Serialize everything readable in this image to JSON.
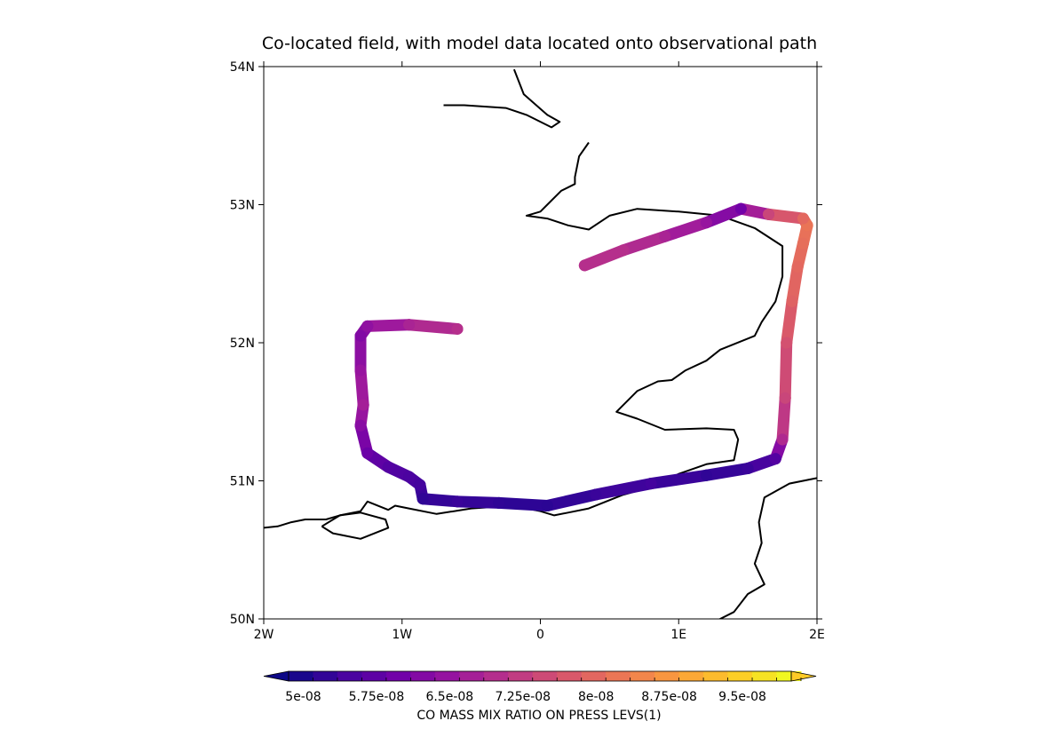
{
  "chart_data": {
    "type": "map-track",
    "title": "Co-located field, with model data located onto observational path",
    "xlim": [
      -2,
      2
    ],
    "ylim": [
      50,
      54
    ],
    "x_ticks": [
      {
        "value": -2,
        "label": "2W"
      },
      {
        "value": -1,
        "label": "1W"
      },
      {
        "value": 0,
        "label": "0"
      },
      {
        "value": 1,
        "label": "1E"
      },
      {
        "value": 2,
        "label": "2E"
      }
    ],
    "y_ticks": [
      {
        "value": 50,
        "label": "50N"
      },
      {
        "value": 51,
        "label": "51N"
      },
      {
        "value": 52,
        "label": "52N"
      },
      {
        "value": 53,
        "label": "53N"
      },
      {
        "value": 54,
        "label": "54N"
      }
    ],
    "colorbar": {
      "label": "CO MASS MIX RATIO ON PRESS LEVS(1)",
      "min": 4.85e-08,
      "max": 1e-07,
      "step": 2.5e-09,
      "extend": "both",
      "colormap": [
        "#0d0887",
        "#46039f",
        "#7201a8",
        "#9c179e",
        "#bd3786",
        "#d8576b",
        "#ed7953",
        "#fb9f3a",
        "#fdca26",
        "#f0f921"
      ],
      "tick_labels": [
        {
          "value": 5e-08,
          "label": "5e-08"
        },
        {
          "value": 5.75e-08,
          "label": "5.75e-08"
        },
        {
          "value": 6.5e-08,
          "label": "6.5e-08"
        },
        {
          "value": 7.25e-08,
          "label": "7.25e-08"
        },
        {
          "value": 8e-08,
          "label": "8e-08"
        },
        {
          "value": 8.75e-08,
          "label": "8.75e-08"
        },
        {
          "value": 9.5e-08,
          "label": "9.5e-08"
        }
      ]
    },
    "track": [
      {
        "lon": -0.6,
        "lat": 52.1,
        "co": 7e-08
      },
      {
        "lon": -0.95,
        "lat": 52.13,
        "co": 6.8e-08
      },
      {
        "lon": -1.25,
        "lat": 52.12,
        "co": 6.4e-08
      },
      {
        "lon": -1.3,
        "lat": 52.05,
        "co": 6.2e-08
      },
      {
        "lon": -1.3,
        "lat": 51.8,
        "co": 6.5e-08
      },
      {
        "lon": -1.28,
        "lat": 51.55,
        "co": 6.7e-08
      },
      {
        "lon": -1.3,
        "lat": 51.4,
        "co": 6.3e-08
      },
      {
        "lon": -1.25,
        "lat": 51.2,
        "co": 5.9e-08
      },
      {
        "lon": -1.1,
        "lat": 51.1,
        "co": 5.6e-08
      },
      {
        "lon": -0.95,
        "lat": 51.03,
        "co": 5.5e-08
      },
      {
        "lon": -0.87,
        "lat": 50.97,
        "co": 5.4e-08
      },
      {
        "lon": -0.85,
        "lat": 50.87,
        "co": 5.2e-08
      },
      {
        "lon": -0.6,
        "lat": 50.85,
        "co": 5.3e-08
      },
      {
        "lon": -0.3,
        "lat": 50.84,
        "co": 5.2e-08
      },
      {
        "lon": 0.05,
        "lat": 50.82,
        "co": 5.15e-08
      },
      {
        "lon": 0.4,
        "lat": 50.9,
        "co": 5.3e-08
      },
      {
        "lon": 0.8,
        "lat": 50.98,
        "co": 5.4e-08
      },
      {
        "lon": 1.2,
        "lat": 51.04,
        "co": 5.2e-08
      },
      {
        "lon": 1.5,
        "lat": 51.09,
        "co": 5.3e-08
      },
      {
        "lon": 1.7,
        "lat": 51.16,
        "co": 5.6e-08
      },
      {
        "lon": 1.75,
        "lat": 51.3,
        "co": 6.9e-08
      },
      {
        "lon": 1.77,
        "lat": 51.6,
        "co": 7.4e-08
      },
      {
        "lon": 1.78,
        "lat": 52.0,
        "co": 7.6e-08
      },
      {
        "lon": 1.82,
        "lat": 52.3,
        "co": 7.9e-08
      },
      {
        "lon": 1.86,
        "lat": 52.55,
        "co": 8e-08
      },
      {
        "lon": 1.9,
        "lat": 52.72,
        "co": 8.1e-08
      },
      {
        "lon": 1.93,
        "lat": 52.85,
        "co": 8.2e-08
      },
      {
        "lon": 1.9,
        "lat": 52.9,
        "co": 8e-08
      },
      {
        "lon": 1.65,
        "lat": 52.93,
        "co": 7.4e-08
      },
      {
        "lon": 1.45,
        "lat": 52.97,
        "co": 6e-08
      },
      {
        "lon": 1.2,
        "lat": 52.87,
        "co": 6.5e-08
      },
      {
        "lon": 0.9,
        "lat": 52.77,
        "co": 6.8e-08
      },
      {
        "lon": 0.6,
        "lat": 52.67,
        "co": 7e-08
      },
      {
        "lon": 0.32,
        "lat": 52.56,
        "co": 7e-08
      }
    ],
    "coastlines": [
      [
        [
          -0.19,
          53.98
        ],
        [
          -0.12,
          53.8
        ],
        [
          0.05,
          53.65
        ],
        [
          0.14,
          53.6
        ],
        [
          0.08,
          53.56
        ],
        [
          -0.1,
          53.65
        ],
        [
          -0.25,
          53.7
        ],
        [
          -0.55,
          53.72
        ],
        [
          -0.7,
          53.72
        ]
      ],
      [
        [
          0.35,
          53.45
        ],
        [
          0.28,
          53.35
        ],
        [
          0.25,
          53.2
        ],
        [
          0.25,
          53.15
        ],
        [
          0.15,
          53.1
        ],
        [
          0.05,
          53.0
        ],
        [
          0.0,
          52.95
        ],
        [
          -0.1,
          52.92
        ],
        [
          0.05,
          52.9
        ],
        [
          0.2,
          52.85
        ],
        [
          0.35,
          52.82
        ],
        [
          0.5,
          52.92
        ],
        [
          0.7,
          52.97
        ],
        [
          1.0,
          52.95
        ],
        [
          1.3,
          52.92
        ],
        [
          1.55,
          52.83
        ],
        [
          1.75,
          52.7
        ],
        [
          1.75,
          52.48
        ],
        [
          1.7,
          52.3
        ],
        [
          1.6,
          52.15
        ],
        [
          1.55,
          52.05
        ],
        [
          1.3,
          51.95
        ],
        [
          1.2,
          51.87
        ],
        [
          1.05,
          51.8
        ],
        [
          0.95,
          51.73
        ],
        [
          0.85,
          51.72
        ],
        [
          0.7,
          51.65
        ],
        [
          0.55,
          51.5
        ],
        [
          0.7,
          51.45
        ],
        [
          0.9,
          51.37
        ],
        [
          1.2,
          51.38
        ],
        [
          1.4,
          51.37
        ],
        [
          1.43,
          51.3
        ],
        [
          1.4,
          51.15
        ],
        [
          1.2,
          51.12
        ],
        [
          1.0,
          51.05
        ],
        [
          0.9,
          51.0
        ],
        [
          0.75,
          50.94
        ],
        [
          0.6,
          50.9
        ],
        [
          0.35,
          50.8
        ],
        [
          0.2,
          50.77
        ],
        [
          0.1,
          50.75
        ],
        [
          0.0,
          50.78
        ],
        [
          -0.2,
          50.82
        ],
        [
          -0.5,
          50.8
        ],
        [
          -0.75,
          50.76
        ],
        [
          -0.95,
          50.8
        ],
        [
          -1.05,
          50.82
        ],
        [
          -1.1,
          50.79
        ],
        [
          -1.25,
          50.85
        ],
        [
          -1.3,
          50.78
        ],
        [
          -1.45,
          50.75
        ],
        [
          -1.55,
          50.72
        ],
        [
          -1.7,
          50.72
        ],
        [
          -1.8,
          50.7
        ],
        [
          -1.9,
          50.67
        ],
        [
          -2.0,
          50.66
        ]
      ],
      [
        [
          -1.58,
          50.67
        ],
        [
          -1.45,
          50.75
        ],
        [
          -1.3,
          50.77
        ],
        [
          -1.12,
          50.72
        ],
        [
          -1.1,
          50.66
        ],
        [
          -1.3,
          50.58
        ],
        [
          -1.5,
          50.62
        ],
        [
          -1.58,
          50.67
        ]
      ],
      [
        [
          2.0,
          51.02
        ],
        [
          1.8,
          50.98
        ],
        [
          1.62,
          50.88
        ],
        [
          1.58,
          50.7
        ],
        [
          1.6,
          50.55
        ],
        [
          1.55,
          50.4
        ],
        [
          1.62,
          50.25
        ],
        [
          1.5,
          50.18
        ],
        [
          1.4,
          50.05
        ],
        [
          1.3,
          50.0
        ],
        [
          1.25,
          49.98
        ]
      ]
    ]
  }
}
